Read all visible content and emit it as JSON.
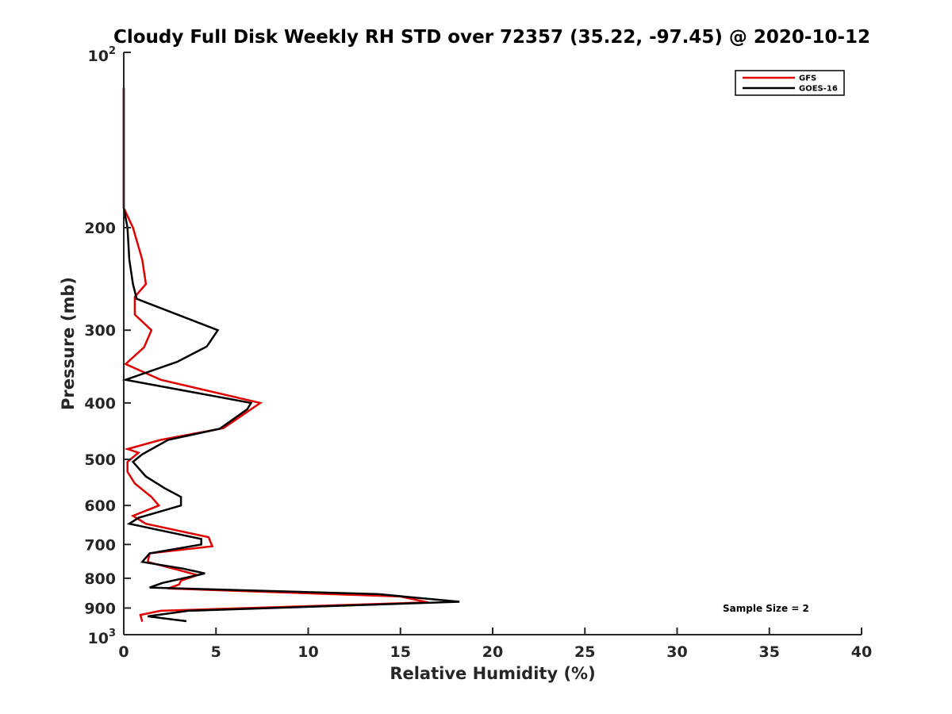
{
  "chart_data": {
    "type": "line",
    "title": "Cloudy Full Disk Weekly RH STD over 72357 (35.22, -97.45) @ 2020-10-12",
    "xlabel": "Relative Humidity (%)",
    "ylabel": "Pressure (mb)",
    "xlim": [
      0,
      40
    ],
    "ylim": [
      100,
      1000
    ],
    "y_scale": "log",
    "y_reversed": true,
    "x_ticks": [
      "0",
      "5",
      "10",
      "15",
      "20",
      "25",
      "30",
      "35",
      "40"
    ],
    "y_ticks": [
      {
        "value": 100,
        "base": "10",
        "exp": "2"
      },
      {
        "value": 200,
        "label": "200"
      },
      {
        "value": 300,
        "label": "300"
      },
      {
        "value": 400,
        "label": "400"
      },
      {
        "value": 500,
        "label": "500"
      },
      {
        "value": 600,
        "label": "600"
      },
      {
        "value": 700,
        "label": "700"
      },
      {
        "value": 800,
        "label": "800"
      },
      {
        "value": 900,
        "label": "900"
      },
      {
        "value": 1000,
        "base": "10",
        "exp": "3"
      }
    ],
    "legend_position": "top-right",
    "annotation": "Sample Size = 2",
    "series": [
      {
        "name": "GFS",
        "color": "#e00000",
        "points": [
          [
            0,
            115
          ],
          [
            0,
            185
          ],
          [
            0.5,
            200
          ],
          [
            1.0,
            227
          ],
          [
            1.2,
            250
          ],
          [
            0.6,
            263
          ],
          [
            0.6,
            282
          ],
          [
            1.5,
            300
          ],
          [
            1.1,
            321
          ],
          [
            0.1,
            343
          ],
          [
            2.0,
            365
          ],
          [
            7.4,
            400
          ],
          [
            5.4,
            442
          ],
          [
            2.0,
            463
          ],
          [
            0.2,
            480
          ],
          [
            0.8,
            487
          ],
          [
            0.2,
            505
          ],
          [
            0.2,
            525
          ],
          [
            0.6,
            550
          ],
          [
            1.5,
            580
          ],
          [
            1.9,
            600
          ],
          [
            0.5,
            625
          ],
          [
            1.2,
            645
          ],
          [
            4.6,
            680
          ],
          [
            4.8,
            705
          ],
          [
            1.4,
            725
          ],
          [
            1.3,
            750
          ],
          [
            3.0,
            775
          ],
          [
            4.0,
            790
          ],
          [
            3.1,
            808
          ],
          [
            3.0,
            820
          ],
          [
            2.4,
            833
          ],
          [
            15.0,
            860
          ],
          [
            16.5,
            880
          ],
          [
            2.0,
            910
          ],
          [
            0.9,
            925
          ],
          [
            1.0,
            950
          ]
        ]
      },
      {
        "name": "GOES-16",
        "color": "#000000",
        "points": [
          [
            0,
            115
          ],
          [
            0,
            185
          ],
          [
            0.2,
            200
          ],
          [
            0.3,
            227
          ],
          [
            0.5,
            250
          ],
          [
            0.7,
            265
          ],
          [
            5.1,
            300
          ],
          [
            4.5,
            320
          ],
          [
            2.9,
            340
          ],
          [
            0.1,
            365
          ],
          [
            6.9,
            400
          ],
          [
            6.7,
            410
          ],
          [
            5.2,
            443
          ],
          [
            2.4,
            463
          ],
          [
            1.0,
            490
          ],
          [
            0.5,
            505
          ],
          [
            1.2,
            535
          ],
          [
            2.2,
            560
          ],
          [
            3.1,
            580
          ],
          [
            3.1,
            600
          ],
          [
            0.8,
            630
          ],
          [
            0.3,
            645
          ],
          [
            4.2,
            685
          ],
          [
            4.2,
            700
          ],
          [
            1.4,
            725
          ],
          [
            1.0,
            750
          ],
          [
            3.2,
            770
          ],
          [
            4.4,
            785
          ],
          [
            2.1,
            815
          ],
          [
            1.4,
            830
          ],
          [
            13.8,
            852
          ],
          [
            18.2,
            878
          ],
          [
            3.5,
            910
          ],
          [
            1.3,
            930
          ],
          [
            3.4,
            948
          ]
        ]
      }
    ]
  }
}
